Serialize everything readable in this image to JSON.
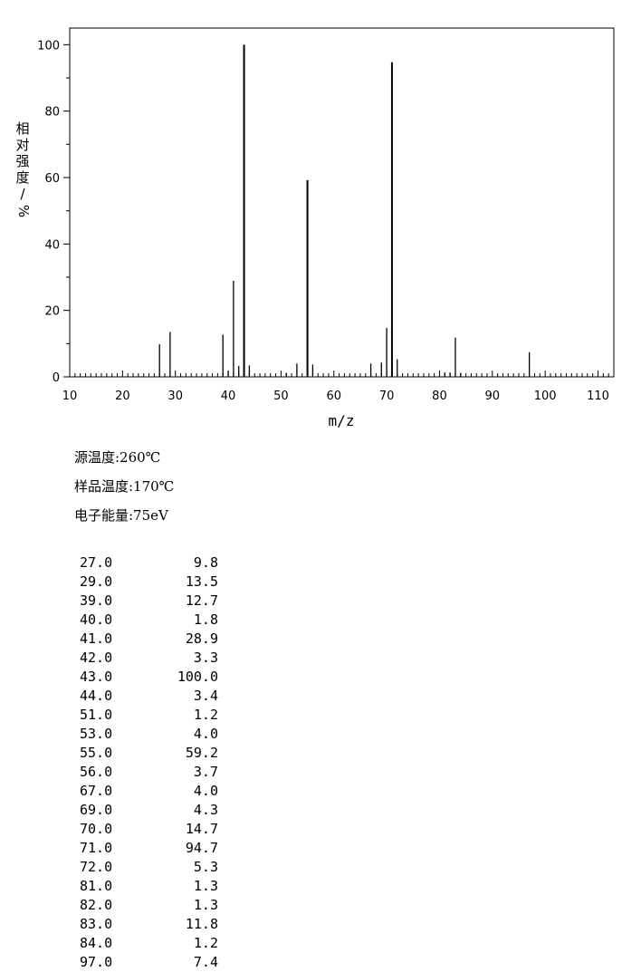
{
  "chart_data": {
    "type": "bar",
    "xlabel": "m/z",
    "ylabel": "相对强度/%",
    "xlim": [
      10,
      113
    ],
    "ylim": [
      0,
      105
    ],
    "xticks": [
      10,
      20,
      30,
      40,
      50,
      60,
      70,
      80,
      90,
      100,
      110
    ],
    "yticks": [
      0,
      20,
      40,
      60,
      80,
      100
    ],
    "grid": false,
    "x": [
      27,
      29,
      39,
      40,
      41,
      42,
      43,
      44,
      51,
      53,
      55,
      56,
      67,
      69,
      70,
      71,
      72,
      81,
      82,
      83,
      84,
      97
    ],
    "values": [
      9.8,
      13.5,
      12.7,
      1.8,
      28.9,
      3.3,
      100.0,
      3.4,
      1.2,
      4.0,
      59.2,
      3.7,
      4.0,
      4.3,
      14.7,
      94.7,
      5.3,
      1.3,
      1.3,
      11.8,
      1.2,
      7.4
    ]
  },
  "conditions": {
    "source_temp": "源温度:260℃",
    "sample_temp": "样品温度:170℃",
    "electron_energy": "电子能量:75eV"
  },
  "peak_table": [
    {
      "mz": "27.0",
      "abundance": "9.8"
    },
    {
      "mz": "29.0",
      "abundance": "13.5"
    },
    {
      "mz": "39.0",
      "abundance": "12.7"
    },
    {
      "mz": "40.0",
      "abundance": "1.8"
    },
    {
      "mz": "41.0",
      "abundance": "28.9"
    },
    {
      "mz": "42.0",
      "abundance": "3.3"
    },
    {
      "mz": "43.0",
      "abundance": "100.0"
    },
    {
      "mz": "44.0",
      "abundance": "3.4"
    },
    {
      "mz": "51.0",
      "abundance": "1.2"
    },
    {
      "mz": "53.0",
      "abundance": "4.0"
    },
    {
      "mz": "55.0",
      "abundance": "59.2"
    },
    {
      "mz": "56.0",
      "abundance": "3.7"
    },
    {
      "mz": "67.0",
      "abundance": "4.0"
    },
    {
      "mz": "69.0",
      "abundance": "4.3"
    },
    {
      "mz": "70.0",
      "abundance": "14.7"
    },
    {
      "mz": "71.0",
      "abundance": "94.7"
    },
    {
      "mz": "72.0",
      "abundance": "5.3"
    },
    {
      "mz": "81.0",
      "abundance": "1.3"
    },
    {
      "mz": "82.0",
      "abundance": "1.3"
    },
    {
      "mz": "83.0",
      "abundance": "11.8"
    },
    {
      "mz": "84.0",
      "abundance": "1.2"
    },
    {
      "mz": "97.0",
      "abundance": "7.4"
    }
  ]
}
